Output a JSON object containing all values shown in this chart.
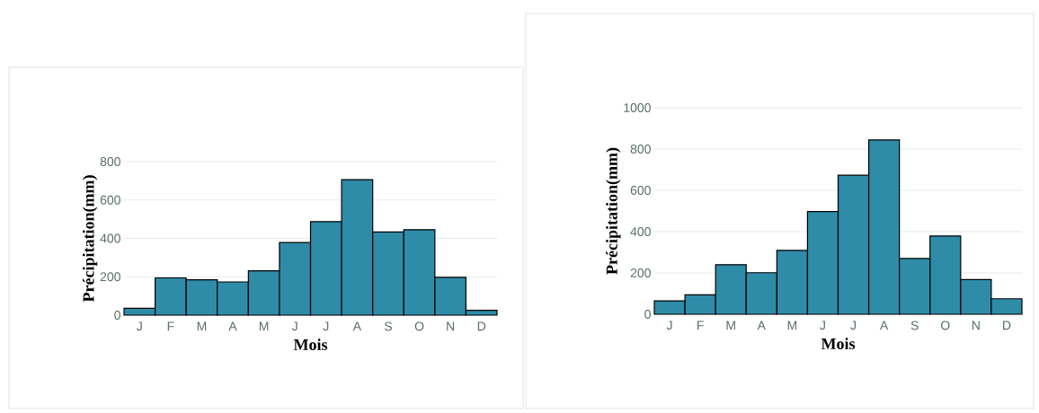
{
  "chart_data": [
    {
      "type": "bar",
      "xlabel": "Mois",
      "ylabel": "Précipitation(mm)",
      "categories": [
        "J",
        "F",
        "M",
        "A",
        "M",
        "J",
        "J",
        "A",
        "S",
        "O",
        "N",
        "D"
      ],
      "values": [
        36,
        194,
        184,
        173,
        231,
        378,
        487,
        706,
        433,
        445,
        197,
        25
      ],
      "color": "#2e8ca8",
      "ylim": [
        0,
        800
      ],
      "yticks": [
        0,
        200,
        400,
        600,
        800
      ],
      "grid": "y"
    },
    {
      "type": "bar",
      "xlabel": "Mois",
      "ylabel": "Précipitation(mm)",
      "categories": [
        "J",
        "F",
        "M",
        "A",
        "M",
        "J",
        "J",
        "A",
        "S",
        "O",
        "N",
        "D"
      ],
      "values": [
        65,
        94,
        240,
        201,
        309,
        497,
        673,
        844,
        270,
        379,
        168,
        75
      ],
      "color": "#2e8ca8",
      "ylim": [
        0,
        1000
      ],
      "yticks": [
        0,
        200,
        400,
        600,
        800,
        1000
      ],
      "grid": "y"
    }
  ]
}
